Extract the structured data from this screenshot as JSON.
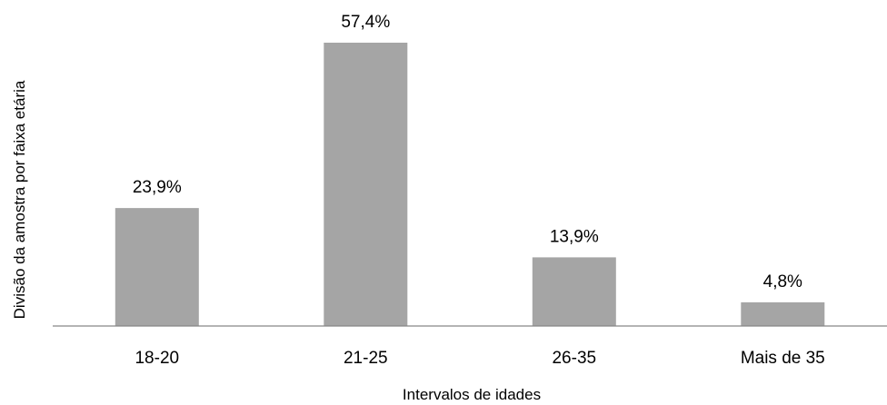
{
  "chart_data": {
    "type": "bar",
    "categories": [
      "18-20",
      "21-25",
      "26-35",
      "Mais de 35"
    ],
    "values": [
      23.9,
      57.4,
      13.9,
      4.8
    ],
    "data_labels": [
      "23,9%",
      "57,4%",
      "13,9%",
      "4,8%"
    ],
    "title": "",
    "xlabel": "Intervalos de idades",
    "ylabel": "Divisão da amostra por faixa etária",
    "ylim": [
      0,
      60
    ],
    "grid": false,
    "legend": "none",
    "colors": {
      "bar": "#a5a5a5",
      "axis": "#868686"
    }
  }
}
